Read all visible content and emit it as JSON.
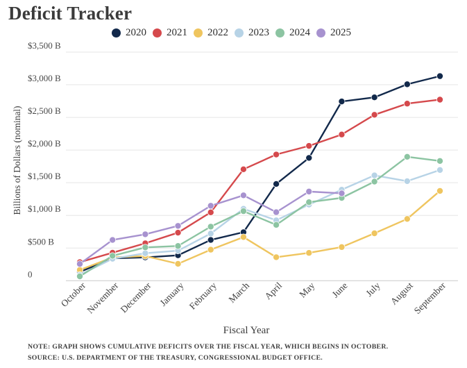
{
  "title": "Deficit Tracker",
  "axes": {
    "y_title": "Billions of Dollars (nominal)",
    "x_title": "Fiscal Year"
  },
  "footer": {
    "note": "NOTE: GRAPH SHOWS CUMULATIVE DEFICITS OVER THE FISCAL YEAR, WHICH BEGINS IN OCTOBER.",
    "source": "SOURCE: U.S. DEPARTMENT OF THE TREASURY, CONGRESSIONAL BUDGET OFFICE."
  },
  "chart_data": {
    "type": "line",
    "title": "Deficit Tracker",
    "x": [
      "October",
      "November",
      "December",
      "January",
      "February",
      "March",
      "April",
      "May",
      "June",
      "July",
      "August",
      "September"
    ],
    "xlabel": "Fiscal Year",
    "ylabel": "Billions of Dollars (nominal)",
    "ylim": [
      0,
      3500
    ],
    "ytick_interval": 500,
    "ytick_labels": [
      "0",
      "$500 B",
      "$1,000 B",
      "$1,500 B",
      "$2,000 B",
      "$2,500 B",
      "$3,000 B",
      "$3,500 B"
    ],
    "grid": true,
    "legend_position": "top",
    "series": [
      {
        "name": "2020",
        "color": "#12294b",
        "values": [
          134,
          343,
          357,
          389,
          624,
          743,
          1481,
          1880,
          2744,
          2807,
          3007,
          3132
        ]
      },
      {
        "name": "2021",
        "color": "#d5494c",
        "values": [
          284,
          429,
          573,
          736,
          1047,
          1706,
          1932,
          2064,
          2238,
          2540,
          2711,
          2772
        ]
      },
      {
        "name": "2022",
        "color": "#efc55f",
        "values": [
          165,
          356,
          378,
          259,
          475,
          668,
          360,
          426,
          515,
          726,
          946,
          1375
        ]
      },
      {
        "name": "2023",
        "color": "#b7d3e6",
        "values": [
          88,
          336,
          421,
          460,
          722,
          1101,
          925,
          1165,
          1393,
          1613,
          1524,
          1695
        ]
      },
      {
        "name": "2024",
        "color": "#8cc4a2",
        "values": [
          67,
          381,
          510,
          532,
          828,
          1065,
          855,
          1202,
          1268,
          1517,
          1897,
          1833
        ]
      },
      {
        "name": "2025",
        "color": "#a792cf",
        "values": [
          257,
          624,
          711,
          840,
          1147,
          1307,
          1049,
          1365,
          1338,
          null,
          null,
          null
        ]
      }
    ]
  }
}
